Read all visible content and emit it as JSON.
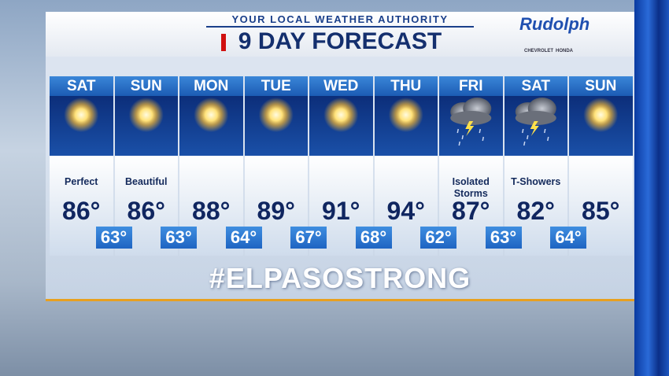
{
  "header": {
    "tagline": "YOUR LOCAL WEATHER AUTHORITY",
    "title": "9 DAY FORECAST",
    "sponsor": "Rudolph",
    "brands": [
      "CHEVROLET",
      "HONDA"
    ]
  },
  "days": [
    {
      "day": "SAT",
      "condition": "Perfect",
      "high": "86°"
    },
    {
      "day": "SUN",
      "condition": "Beautiful",
      "high": "86°"
    },
    {
      "day": "MON",
      "condition": null,
      "high": "88°"
    },
    {
      "day": "TUE",
      "condition": null,
      "high": "89°"
    },
    {
      "day": "WED",
      "condition": null,
      "high": "91°"
    },
    {
      "day": "THU",
      "condition": null,
      "high": "94°"
    },
    {
      "day": "FRI",
      "condition": "Isolated Storms",
      "high": "87°"
    },
    {
      "day": "SAT",
      "condition": "T-Showers",
      "high": "82°"
    },
    {
      "day": "SUN",
      "condition": null,
      "high": "85°"
    }
  ],
  "lows": [
    "63°",
    "63°",
    "64°",
    "67°",
    "68°",
    "62°",
    "63°",
    "64°"
  ],
  "hashtag": "#ELPASOSTRONG"
}
